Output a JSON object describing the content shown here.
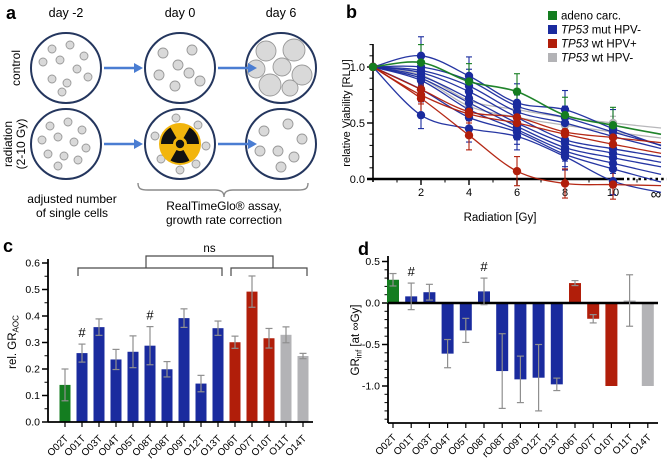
{
  "figure": {
    "background": "#ffffff"
  },
  "colors": {
    "adeno": "#147d20",
    "mut": "#1a2b9e",
    "wtpos": "#b11e0a",
    "wtneg": "#b3b3b6",
    "axis": "#000000",
    "error_bar": "#8f8f8f",
    "bracket": "#4a4a4a",
    "arrow": "#4a7dd2",
    "dish_stroke": "#24365e",
    "dot_fill": "#d9d9d9",
    "dot_stroke": "#999999",
    "radiation_yellow": "#f2b50d",
    "radiation_black": "#111111",
    "brace": "#8a8a8a"
  },
  "panels": {
    "a": {
      "label": "a",
      "columns": [
        "day -2",
        "day 0",
        "day 6"
      ],
      "row_top": "control",
      "row_bottom_line1": "radiation",
      "row_bottom_line2": "(2-10 Gy)",
      "caption_left_line1": "adjusted number",
      "caption_left_line2": "of single cells",
      "caption_brace_line1": "RealTimeGlo® assay,",
      "caption_brace_line2": "growth rate correction"
    },
    "b": {
      "label": "b"
    },
    "c": {
      "label": "c"
    },
    "d": {
      "label": "d"
    }
  },
  "chart_data": [
    {
      "panel": "b",
      "type": "line",
      "xlabel": "Radiation [Gy]",
      "ylabel": "relative Viability [RLU]",
      "x": [
        0,
        2,
        4,
        6,
        8,
        10
      ],
      "xticks": [
        2,
        4,
        6,
        8,
        10
      ],
      "x_end_label": "∞",
      "yticks": [
        0.0,
        0.5,
        1.0
      ],
      "ylim": [
        -0.15,
        1.3
      ],
      "legend_position": "top-right",
      "legend": [
        {
          "italic": "",
          "text": "adeno carc.",
          "group": "adeno"
        },
        {
          "italic": "TP53",
          "text": " mut HPV-",
          "group": "mut"
        },
        {
          "italic": "TP53",
          "text": " wt HPV+",
          "group": "wtpos"
        },
        {
          "italic": "TP53",
          "text": " wt HPV-",
          "group": "wtneg"
        }
      ],
      "series": [
        {
          "group": "wtneg",
          "values": [
            1.0,
            0.93,
            0.7,
            0.62,
            0.55,
            0.5
          ],
          "err": 0.06
        },
        {
          "group": "wtneg",
          "values": [
            1.0,
            0.9,
            0.65,
            0.55,
            0.48,
            0.42
          ],
          "err": 0.07
        },
        {
          "group": "mut",
          "values": [
            1.0,
            1.1,
            0.92,
            0.68,
            0.62,
            0.45
          ],
          "err": 0.17
        },
        {
          "group": "mut",
          "values": [
            1.0,
            1.0,
            0.88,
            0.65,
            0.55,
            0.42
          ],
          "err": 0.1
        },
        {
          "group": "mut",
          "values": [
            1.0,
            0.97,
            0.83,
            0.6,
            0.5,
            0.38
          ],
          "err": 0.08
        },
        {
          "group": "mut",
          "values": [
            1.0,
            0.95,
            0.78,
            0.55,
            0.35,
            0.27
          ],
          "err": 0.09
        },
        {
          "group": "mut",
          "values": [
            1.0,
            0.92,
            0.72,
            0.5,
            0.32,
            0.23
          ],
          "err": 0.08
        },
        {
          "group": "mut",
          "values": [
            1.0,
            0.9,
            0.68,
            0.47,
            0.28,
            0.19
          ],
          "err": 0.1
        },
        {
          "group": "mut",
          "values": [
            1.0,
            0.88,
            0.62,
            0.44,
            0.25,
            0.14
          ],
          "err": 0.09
        },
        {
          "group": "mut",
          "values": [
            1.0,
            0.8,
            0.55,
            0.42,
            0.22,
            0.09
          ],
          "err": 0.11
        },
        {
          "group": "mut",
          "values": [
            1.0,
            0.57,
            0.45,
            0.38,
            0.2,
            -0.02
          ],
          "err": 0.12
        },
        {
          "group": "wtpos",
          "values": [
            1.0,
            0.8,
            0.6,
            0.55,
            0.42,
            0.37
          ],
          "err": 0.07
        },
        {
          "group": "wtpos",
          "values": [
            1.0,
            0.75,
            0.58,
            0.5,
            0.4,
            0.31
          ],
          "err": 0.08
        },
        {
          "group": "wtpos",
          "values": [
            1.0,
            0.72,
            0.39,
            0.07,
            -0.04,
            -0.05
          ],
          "err": 0.13
        },
        {
          "group": "adeno",
          "values": [
            1.0,
            1.04,
            0.87,
            0.78,
            0.57,
            0.48
          ],
          "err": 0.16
        }
      ]
    },
    {
      "panel": "c",
      "type": "bar",
      "ylabel": {
        "pre": "rel. GR",
        "sub": "AOC",
        "post": ""
      },
      "ylim": [
        0,
        0.6
      ],
      "yticks": [
        0.0,
        0.1,
        0.2,
        0.3,
        0.4,
        0.5,
        0.6
      ],
      "categories": [
        "O02T",
        "O01T",
        "O03T",
        "O04T",
        "O05T",
        "O08T",
        "rO08T",
        "O09T",
        "O12T",
        "O13T",
        "O06T",
        "O07T",
        "O10T",
        "O11T",
        "O14T"
      ],
      "category_groups": [
        "adeno",
        "mut",
        "mut",
        "mut",
        "mut",
        "mut",
        "mut",
        "mut",
        "mut",
        "mut",
        "wtpos",
        "wtpos",
        "wtpos",
        "wtneg",
        "wtneg"
      ],
      "values": [
        0.14,
        0.26,
        0.358,
        0.236,
        0.265,
        0.288,
        0.199,
        0.392,
        0.145,
        0.354,
        0.301,
        0.492,
        0.316,
        0.329,
        0.249
      ],
      "errors": [
        0.06,
        0.034,
        0.031,
        0.038,
        0.06,
        0.072,
        0.029,
        0.035,
        0.031,
        0.027,
        0.023,
        0.059,
        0.037,
        0.03,
        0.01
      ],
      "hash_symbol": "#",
      "hash_categories": [
        "O01T",
        "O08T"
      ],
      "brackets": [
        {
          "from": "O01T",
          "to": "O13T"
        },
        {
          "from": "O06T",
          "to": "O14T"
        },
        {
          "from": "O08T",
          "to": "O10T",
          "label": "ns"
        }
      ]
    },
    {
      "panel": "d",
      "type": "bar",
      "ylabel": {
        "pre": "GR",
        "sub": "inf",
        "post": " [at ∞Gy]"
      },
      "ylim": [
        -1.45,
        0.55
      ],
      "yticks": [
        0.5,
        0.0,
        -0.5,
        -1.0
      ],
      "categories": [
        "O02T",
        "O01T",
        "O03T",
        "O04T",
        "O05T",
        "O08T",
        "rO08T",
        "O09T",
        "O12T",
        "O13T",
        "O06T",
        "O07T",
        "O10T",
        "O11T",
        "O14T"
      ],
      "category_groups": [
        "adeno",
        "mut",
        "mut",
        "mut",
        "mut",
        "mut",
        "mut",
        "mut",
        "mut",
        "mut",
        "wtpos",
        "wtpos",
        "wtpos",
        "wtneg",
        "wtneg"
      ],
      "values": [
        0.28,
        0.08,
        0.13,
        -0.61,
        -0.33,
        0.14,
        -0.82,
        -0.92,
        -0.9,
        -0.98,
        0.24,
        -0.19,
        -1.0,
        0.03,
        -1.0
      ],
      "errors": [
        0.075,
        0.16,
        0.095,
        0.17,
        0.145,
        0.16,
        0.45,
        0.28,
        0.4,
        0.075,
        0.03,
        0.05,
        0,
        0.31,
        0
      ],
      "hash_symbol": "#",
      "hash_categories": [
        "O01T",
        "O08T"
      ]
    }
  ]
}
